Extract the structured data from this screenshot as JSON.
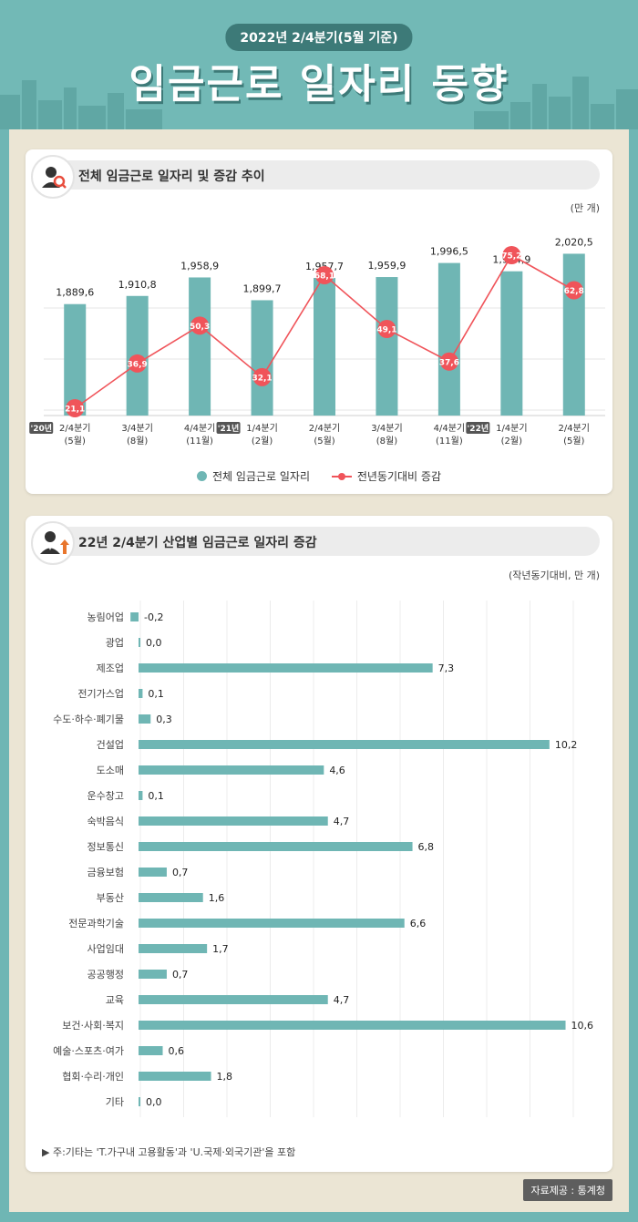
{
  "header": {
    "date_badge": "2022년 2/4분기(5월 기준)",
    "title": "임금근로 일자리 동향"
  },
  "section1": {
    "title": "전체 임금근로 일자리 및 증감 추이",
    "unit": "(만 개)",
    "legend_bar": "전체 임금근로 일자리",
    "legend_line": "전년동기대비 증감"
  },
  "section2": {
    "title": "22년 2/4분기 산업별 임금근로 일자리 증감",
    "unit": "(작년동기대비, 만 개)",
    "note": "▶ 주:기타는 'T.가구내 고용활동'과 'U.국제·외국기관'을 포함"
  },
  "source": "자료제공 : 통계청",
  "colors": {
    "bar": "#6fb6b4",
    "line": "#f0545a",
    "header": "#72b9b6",
    "panel": "#ebe5d4"
  },
  "icons": {
    "section1": "person-magnifier-icon",
    "section2": "businessman-up-arrow-icon"
  },
  "chart_data": [
    {
      "type": "bar+line",
      "title": "전체 임금근로 일자리 및 증감 추이",
      "unit": "(만 개)",
      "categories": [
        {
          "year": "'20년",
          "q": "2/4분기",
          "m": "(5월)"
        },
        {
          "year": "",
          "q": "3/4분기",
          "m": "(8월)"
        },
        {
          "year": "",
          "q": "4/4분기",
          "m": "(11월)"
        },
        {
          "year": "'21년",
          "q": "1/4분기",
          "m": "(2월)"
        },
        {
          "year": "",
          "q": "2/4분기",
          "m": "(5월)"
        },
        {
          "year": "",
          "q": "3/4분기",
          "m": "(8월)"
        },
        {
          "year": "",
          "q": "4/4분기",
          "m": "(11월)"
        },
        {
          "year": "'22년",
          "q": "1/4분기",
          "m": "(2월)"
        },
        {
          "year": "",
          "q": "2/4분기",
          "m": "(5월)"
        }
      ],
      "series": [
        {
          "name": "전체 임금근로 일자리",
          "kind": "bar",
          "values": [
            1889.6,
            1910.8,
            1958.9,
            1899.7,
            1957.7,
            1959.9,
            1996.5,
            1974.9,
            2020.5
          ],
          "labels": [
            "1,889,6",
            "1,910,8",
            "1,958,9",
            "1,899,7",
            "1,957,7",
            "1,959,9",
            "1,996,5",
            "1,974,9",
            "2,020,5"
          ]
        },
        {
          "name": "전년동기대비 증감",
          "kind": "line",
          "values": [
            21.1,
            36.9,
            50.3,
            32.1,
            68.1,
            49.1,
            37.6,
            75.2,
            62.8
          ],
          "labels": [
            "21,1",
            "36,9",
            "50,3",
            "32,1",
            "68,1",
            "49,1",
            "37,6",
            "75,2",
            "62,8"
          ]
        }
      ],
      "legend": "bottom-center",
      "grid": true
    },
    {
      "type": "bar",
      "orientation": "horizontal",
      "title": "22년 2/4분기 산업별 임금근로 일자리 증감",
      "unit": "(작년동기대비, 만 개)",
      "categories": [
        "농림어업",
        "광업",
        "제조업",
        "전기가스업",
        "수도·하수·폐기물",
        "건설업",
        "도소매",
        "운수창고",
        "숙박음식",
        "정보통신",
        "금융보험",
        "부동산",
        "전문과학기술",
        "사업임대",
        "공공행정",
        "교육",
        "보건·사회·복지",
        "예술·스포츠·여가",
        "협회·수리·개인",
        "기타"
      ],
      "values": [
        -0.2,
        0.0,
        7.3,
        0.1,
        0.3,
        10.2,
        4.6,
        0.1,
        4.7,
        6.8,
        0.7,
        1.6,
        6.6,
        1.7,
        0.7,
        4.7,
        10.6,
        0.6,
        1.8,
        0.0
      ],
      "labels": [
        "-0,2",
        "0,0",
        "7,3",
        "0,1",
        "0,3",
        "10,2",
        "4,6",
        "0,1",
        "4,7",
        "6,8",
        "0,7",
        "1,6",
        "6,6",
        "1,7",
        "0,7",
        "4,7",
        "10,6",
        "0,6",
        "1,8",
        "0,0"
      ],
      "grid": true
    }
  ]
}
